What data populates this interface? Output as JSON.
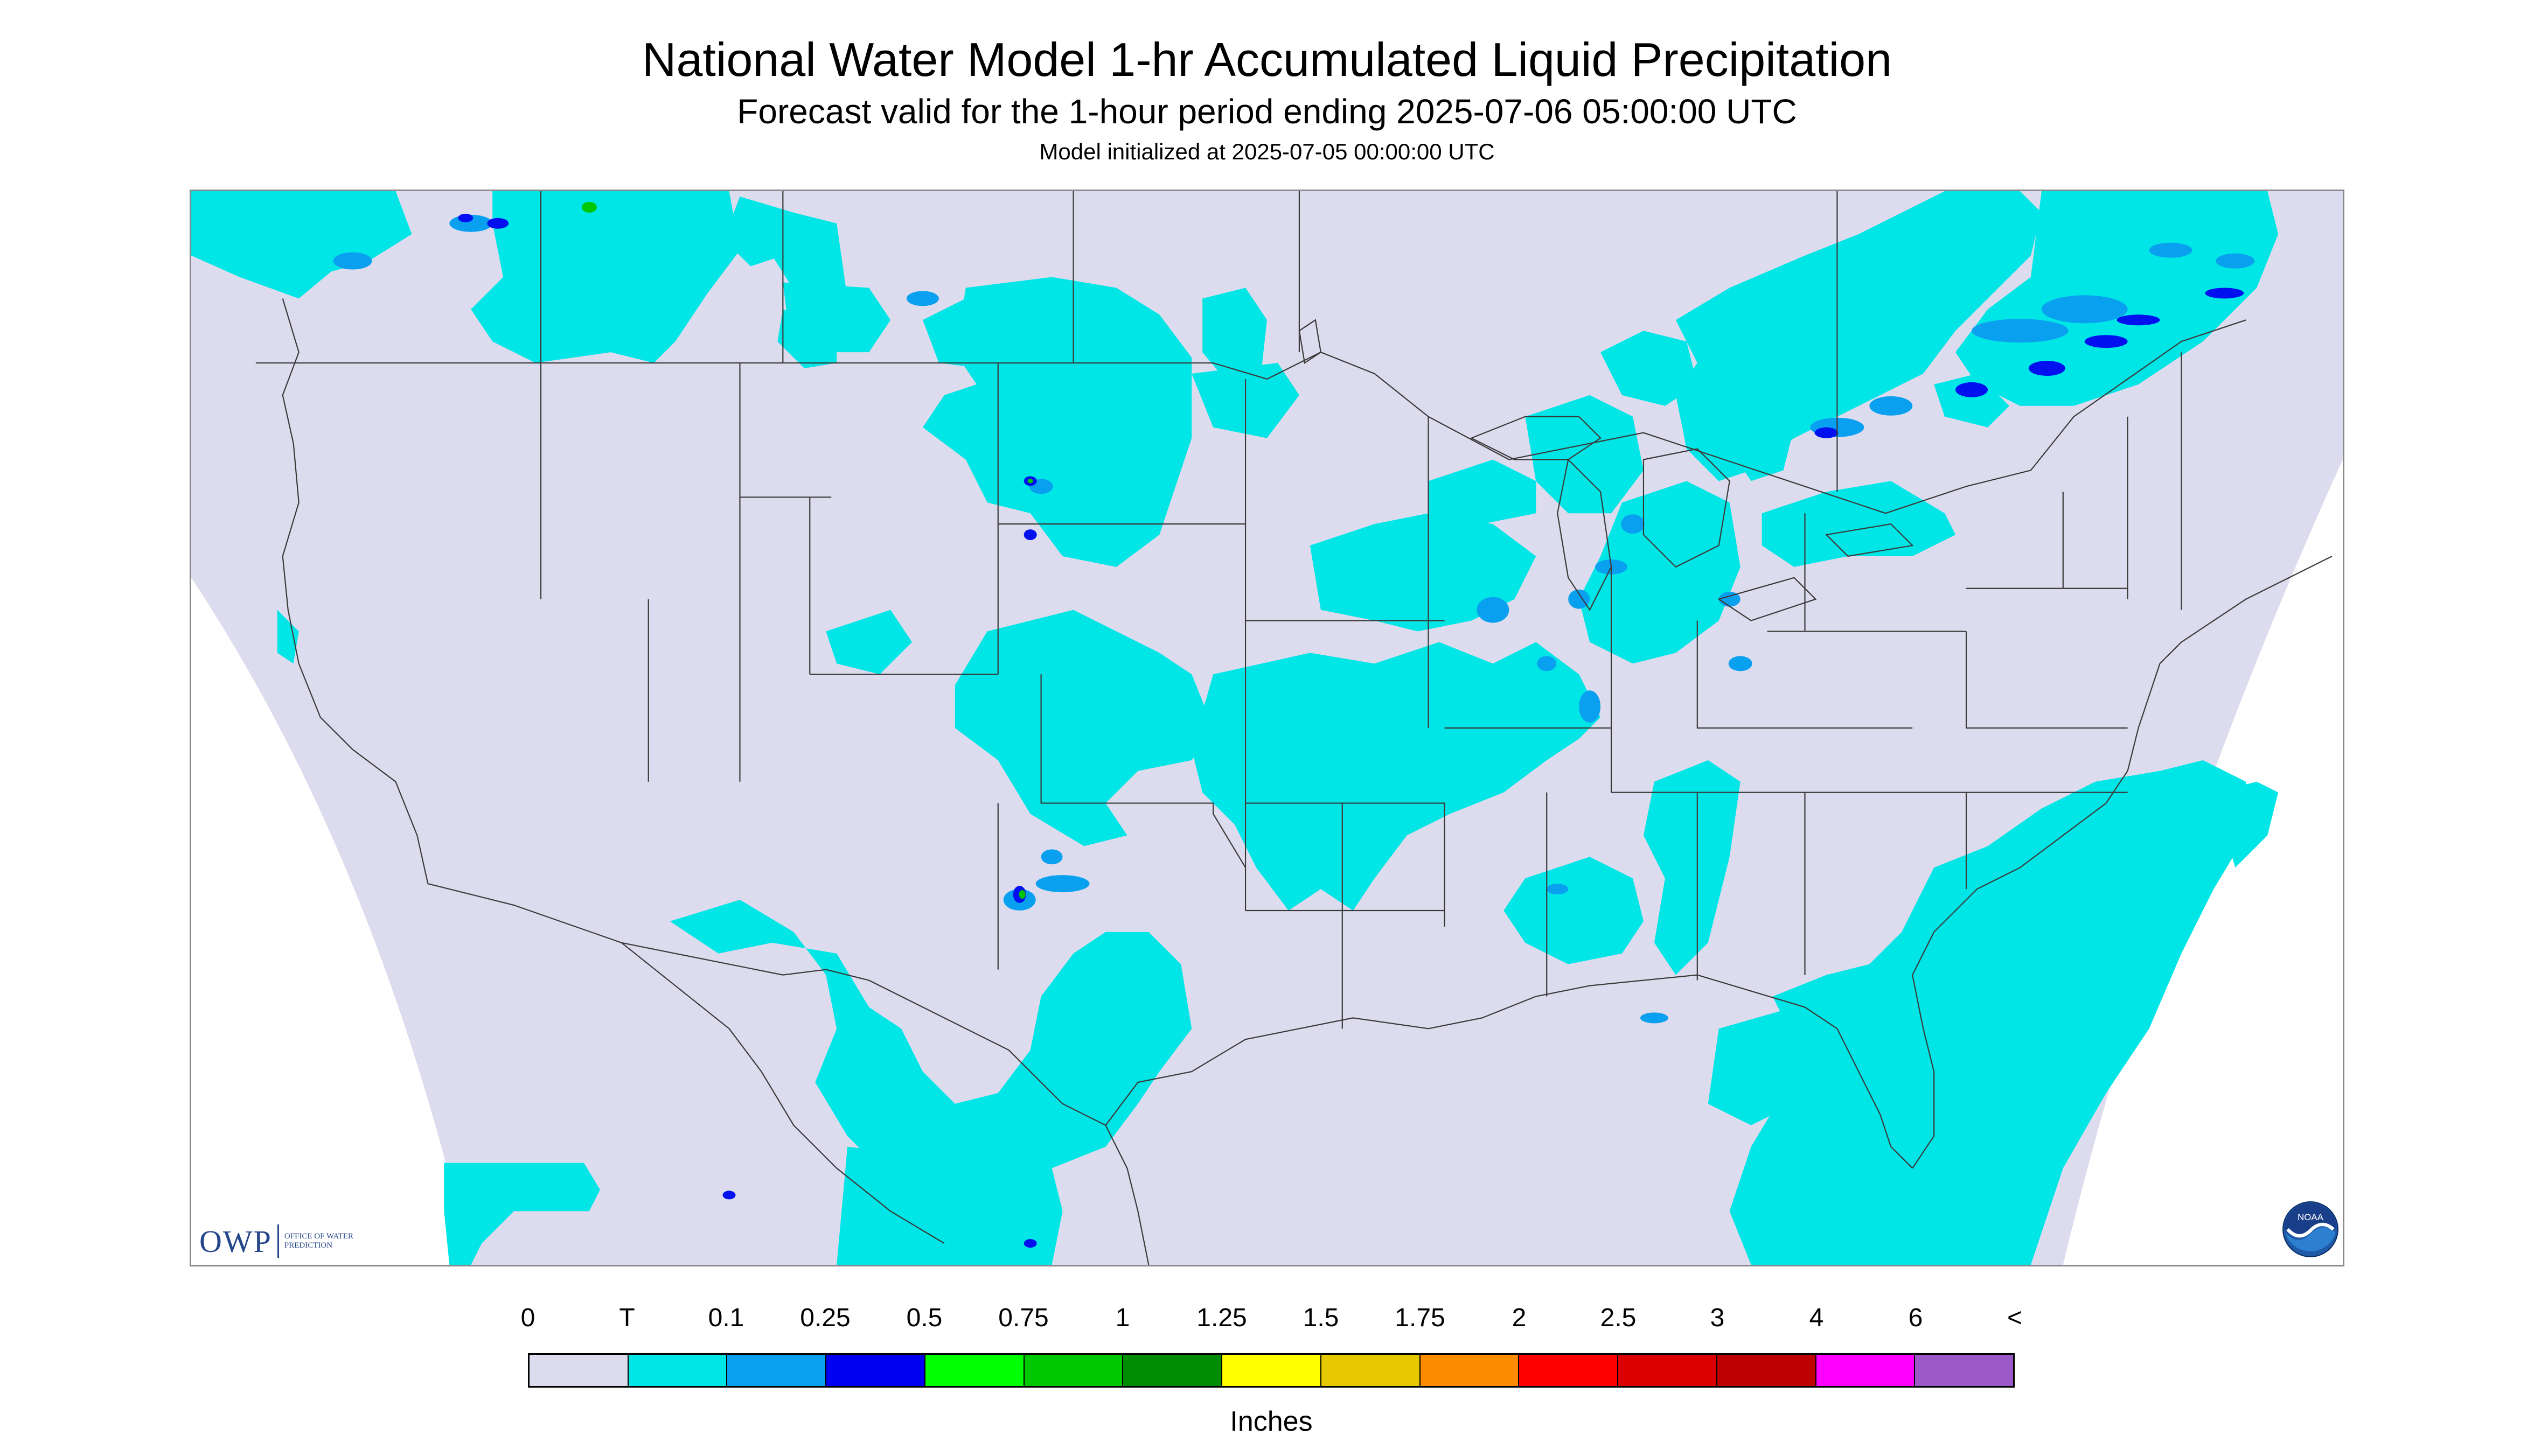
{
  "header": {
    "title": "National Water Model 1-hr Accumulated Liquid Precipitation",
    "subtitle": "Forecast valid for the 1-hour period ending 2025-07-06 05:00:00 UTC",
    "init_line": "Model initialized at 2025-07-05 00:00:00 UTC"
  },
  "map": {
    "background_color": "#dcdcee",
    "outside_color": "#ffffff",
    "boundary_color": "#3a3a3a",
    "precip_colors": {
      "trace": "#00e5e5",
      "light": "#0aa0f0",
      "moderate": "#0010ee",
      "heavy": "#00c800"
    }
  },
  "logos": {
    "owp_mark": "OWP",
    "owp_text": "Office of Water Prediction",
    "noaa_text": "NOAA"
  },
  "legend": {
    "units": "Inches",
    "labels": [
      "0",
      "T",
      "0.1",
      "0.25",
      "0.5",
      "0.75",
      "1",
      "1.25",
      "1.5",
      "1.75",
      "2",
      "2.5",
      "3",
      "4",
      "6",
      "<"
    ],
    "colors": [
      "#dcdcee",
      "#00e5e5",
      "#0aa0f0",
      "#0000f0",
      "#00ff00",
      "#00c800",
      "#008c00",
      "#ffff00",
      "#e6c800",
      "#ff8c00",
      "#ff0000",
      "#dc0000",
      "#be0000",
      "#ff00ff",
      "#9b59c8"
    ]
  }
}
